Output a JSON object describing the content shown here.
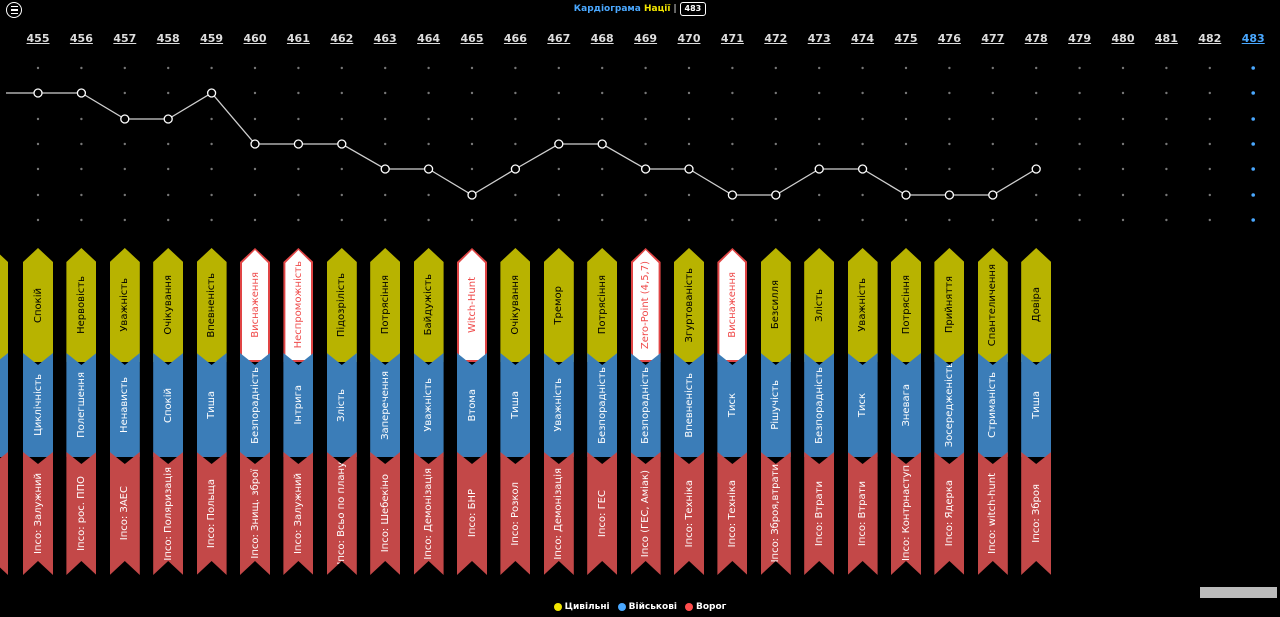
{
  "header": {
    "title_part1": "Кардіограма",
    "title_part2": "Нації",
    "separator": "|",
    "badge": "483"
  },
  "columns": [
    {
      "num": "455",
      "level": 1,
      "top": "Спокій",
      "mid": "Циклічність",
      "bot": "Іпсо: Залужний"
    },
    {
      "num": "456",
      "level": 1,
      "top": "Нервовість",
      "mid": "Полегшення",
      "bot": "Іпсо: рос. ППО"
    },
    {
      "num": "457",
      "level": 2,
      "top": "Уважність",
      "mid": "Ненависть",
      "bot": "Іпсо: ЗАЕС"
    },
    {
      "num": "458",
      "level": 2,
      "top": "Очікування",
      "mid": "Спокій",
      "bot": "Іпсо: Поляризація"
    },
    {
      "num": "459",
      "level": 1,
      "top": "Впевненість",
      "mid": "Тиша",
      "bot": "Іпсо: Польща"
    },
    {
      "num": "460",
      "level": 3,
      "top": "Виснаження",
      "top_style": "white",
      "mid": "Безпорадність",
      "bot": "Іпсо: Знищ. зброї"
    },
    {
      "num": "461",
      "level": 3,
      "top": "Неспроможність",
      "top_style": "white",
      "mid": "Інтрига",
      "bot": "Іпсо: Залужний"
    },
    {
      "num": "462",
      "level": 3,
      "top": "Підозрілість",
      "mid": "Злість",
      "bot": "Іпсо: Всьо по плану"
    },
    {
      "num": "463",
      "level": 4,
      "top": "Потрясіння",
      "mid": "Заперечення",
      "bot": "Іпсо: Шебекіно"
    },
    {
      "num": "464",
      "level": 4,
      "top": "Байдужість",
      "mid": "Уважність",
      "bot": "Іпсо: Демонізація"
    },
    {
      "num": "465",
      "level": 5,
      "top": "Witch-Hunt",
      "top_style": "white",
      "mid": "Втома",
      "bot": "Іпсо: БНР"
    },
    {
      "num": "466",
      "level": 4,
      "top": "Очікування",
      "mid": "Тиша",
      "bot": "Іпсо: Розкол"
    },
    {
      "num": "467",
      "level": 3,
      "top": "Тремор",
      "mid": "Уважність",
      "bot": "Іпсо: Демонізація"
    },
    {
      "num": "468",
      "level": 3,
      "top": "Потрясіння",
      "mid": "Безпорадність",
      "bot": "Іпсо: ГЕС"
    },
    {
      "num": "469",
      "level": 4,
      "top": "Zero-Point (4,5,7)",
      "top_style": "white",
      "mid": "Безпорадність",
      "bot": "Іпсо (ГЕС, Аміак)"
    },
    {
      "num": "470",
      "level": 4,
      "top": "Згуртованість",
      "mid": "Впевненість",
      "bot": "Іпсо: Техніка"
    },
    {
      "num": "471",
      "level": 5,
      "top": "Виснаження",
      "top_style": "white",
      "mid": "Тиск",
      "bot": "Іпсо: Техніка"
    },
    {
      "num": "472",
      "level": 5,
      "top": "Безсилля",
      "mid": "Рішучість",
      "bot": "Іпсо: Зброя,втрати"
    },
    {
      "num": "473",
      "level": 4,
      "top": "Злість",
      "mid": "Безпорадність",
      "bot": "Іпсо: Втрати"
    },
    {
      "num": "474",
      "level": 4,
      "top": "Уважність",
      "mid": "Тиск",
      "bot": "Іпсо: Втрати"
    },
    {
      "num": "475",
      "level": 5,
      "top": "Потрясіння",
      "mid": "Зневага",
      "bot": "Іпсо: Контрнаступ"
    },
    {
      "num": "476",
      "level": 5,
      "top": "Прийняття",
      "mid": "Зосередженість",
      "bot": "Іпсо: Ядерка"
    },
    {
      "num": "477",
      "level": 5,
      "top": "Спантеличення",
      "mid": "Стриманість",
      "bot": "Іпсо: witch-hunt"
    },
    {
      "num": "478",
      "level": 4,
      "top": "Довіра",
      "mid": "Тиша",
      "bot": "Іпсо: Зброя"
    },
    {
      "num": "479"
    },
    {
      "num": "480"
    },
    {
      "num": "481"
    },
    {
      "num": "482"
    },
    {
      "num": "483",
      "active": true
    }
  ],
  "legend": [
    {
      "label": "Цивільні",
      "color": "#f2e600"
    },
    {
      "label": "Військові",
      "color": "#4aa8ff"
    },
    {
      "label": "Ворог",
      "color": "#ff4d4d"
    }
  ],
  "colors": {
    "civil": "#b8b300",
    "military": "#3b7db8",
    "enemy": "#c34848",
    "accent": "#4aa8ff"
  }
}
